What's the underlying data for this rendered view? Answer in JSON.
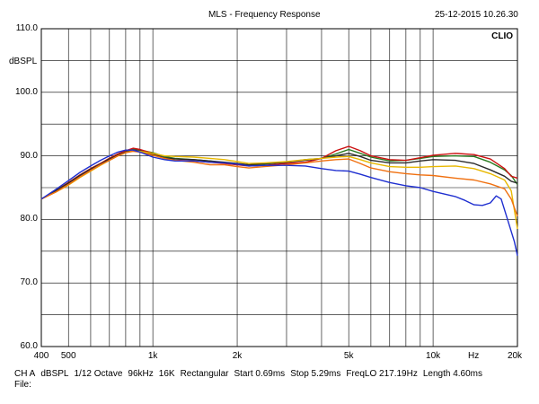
{
  "header": {
    "title": "MLS - Frequency Response",
    "timestamp": "25-12-2015 10.26.30",
    "brand": "CLIO"
  },
  "footer": {
    "settings": [
      "CH A",
      "dBSPL",
      "1/12 Octave",
      "96kHz",
      "16K",
      "Rectangular",
      "Start 0.69ms",
      "Stop 5.29ms",
      "FreqLO 217.19Hz",
      "Length 4.60ms"
    ],
    "file_label": "File:"
  },
  "chart_data": {
    "type": "line",
    "title": "MLS - Frequency Response",
    "ylabel": "dBSPL",
    "xlabel": "Hz",
    "xscale": "log",
    "xlim": [
      400,
      20000
    ],
    "ylim": [
      60,
      110
    ],
    "grid": true,
    "y_ticks": [
      {
        "value": 60,
        "label": "60.0"
      },
      {
        "value": 70,
        "label": "70.0"
      },
      {
        "value": 80,
        "label": "80.0"
      },
      {
        "value": 90,
        "label": "90.0"
      },
      {
        "value": 100,
        "label": "100.0"
      },
      {
        "value": 110,
        "label": "110.0"
      }
    ],
    "x_ticks": [
      {
        "value": 400,
        "label": "400"
      },
      {
        "value": 500,
        "label": "500"
      },
      {
        "value": 1000,
        "label": "1k"
      },
      {
        "value": 2000,
        "label": "2k"
      },
      {
        "value": 5000,
        "label": "5k"
      },
      {
        "value": 10000,
        "label": "10k"
      },
      {
        "value": 20000,
        "label": "20k"
      }
    ],
    "x_grid": [
      400,
      500,
      600,
      700,
      800,
      900,
      1000,
      2000,
      3000,
      4000,
      5000,
      6000,
      7000,
      8000,
      9000,
      10000,
      20000
    ],
    "y_grid": [
      60,
      65,
      70,
      75,
      80,
      85,
      90,
      95,
      100,
      105,
      110
    ],
    "series": [
      {
        "color": "#2a7a20",
        "points": [
          [
            400,
            83.2
          ],
          [
            450,
            84.5
          ],
          [
            500,
            85.8
          ],
          [
            550,
            87.0
          ],
          [
            600,
            88.0
          ],
          [
            650,
            88.8
          ],
          [
            700,
            89.6
          ],
          [
            750,
            90.3
          ],
          [
            800,
            90.8
          ],
          [
            850,
            91.1
          ],
          [
            900,
            90.9
          ],
          [
            1000,
            90.5
          ],
          [
            1100,
            89.9
          ],
          [
            1200,
            89.6
          ],
          [
            1400,
            89.4
          ],
          [
            1600,
            89.2
          ],
          [
            1800,
            88.9
          ],
          [
            2000,
            88.6
          ],
          [
            2200,
            88.5
          ],
          [
            2500,
            88.7
          ],
          [
            3000,
            89.0
          ],
          [
            3500,
            89.4
          ],
          [
            4000,
            89.6
          ],
          [
            4500,
            90.3
          ],
          [
            5000,
            91.0
          ],
          [
            5500,
            90.4
          ],
          [
            6000,
            89.8
          ],
          [
            7000,
            89.2
          ],
          [
            8000,
            89.3
          ],
          [
            9000,
            89.6
          ],
          [
            10000,
            89.9
          ],
          [
            12000,
            90.0
          ],
          [
            14000,
            89.9
          ],
          [
            16000,
            89.0
          ],
          [
            18000,
            87.8
          ],
          [
            19000,
            86.9
          ],
          [
            20000,
            85.5
          ]
        ]
      },
      {
        "color": "#cc1010",
        "points": [
          [
            400,
            83.2
          ],
          [
            450,
            84.5
          ],
          [
            500,
            85.8
          ],
          [
            550,
            87.0
          ],
          [
            600,
            88.0
          ],
          [
            650,
            88.8
          ],
          [
            700,
            89.6
          ],
          [
            750,
            90.3
          ],
          [
            800,
            90.8
          ],
          [
            850,
            91.2
          ],
          [
            900,
            91.0
          ],
          [
            1000,
            90.4
          ],
          [
            1100,
            89.6
          ],
          [
            1200,
            89.3
          ],
          [
            1400,
            89.2
          ],
          [
            1600,
            89.0
          ],
          [
            1800,
            88.8
          ],
          [
            2000,
            88.6
          ],
          [
            2200,
            88.4
          ],
          [
            2500,
            88.5
          ],
          [
            3000,
            88.8
          ],
          [
            3500,
            89.0
          ],
          [
            4000,
            89.6
          ],
          [
            4500,
            90.8
          ],
          [
            5000,
            91.5
          ],
          [
            5500,
            90.8
          ],
          [
            6000,
            90.0
          ],
          [
            7000,
            89.4
          ],
          [
            8000,
            89.3
          ],
          [
            9000,
            89.7
          ],
          [
            10000,
            90.1
          ],
          [
            12000,
            90.4
          ],
          [
            14000,
            90.2
          ],
          [
            16000,
            89.5
          ],
          [
            18000,
            88.0
          ],
          [
            19000,
            86.8
          ],
          [
            20000,
            86.5
          ]
        ]
      },
      {
        "color": "#2b2b2b",
        "points": [
          [
            400,
            83.2
          ],
          [
            450,
            84.5
          ],
          [
            500,
            85.7
          ],
          [
            550,
            86.9
          ],
          [
            600,
            87.9
          ],
          [
            650,
            88.7
          ],
          [
            700,
            89.5
          ],
          [
            750,
            90.1
          ],
          [
            800,
            90.6
          ],
          [
            850,
            90.9
          ],
          [
            900,
            90.8
          ],
          [
            1000,
            90.2
          ],
          [
            1100,
            89.7
          ],
          [
            1200,
            89.5
          ],
          [
            1400,
            89.4
          ],
          [
            1600,
            89.2
          ],
          [
            1800,
            89.0
          ],
          [
            2000,
            88.8
          ],
          [
            2200,
            88.6
          ],
          [
            2500,
            88.8
          ],
          [
            3000,
            89.0
          ],
          [
            3500,
            89.3
          ],
          [
            4000,
            89.6
          ],
          [
            4500,
            90.0
          ],
          [
            5000,
            90.4
          ],
          [
            5500,
            89.9
          ],
          [
            6000,
            89.3
          ],
          [
            7000,
            88.9
          ],
          [
            8000,
            88.9
          ],
          [
            9000,
            89.2
          ],
          [
            10000,
            89.4
          ],
          [
            12000,
            89.3
          ],
          [
            14000,
            88.8
          ],
          [
            16000,
            87.8
          ],
          [
            18000,
            86.8
          ],
          [
            19000,
            86.0
          ],
          [
            20000,
            85.7
          ]
        ]
      },
      {
        "color": "#e8b800",
        "points": [
          [
            400,
            83.2
          ],
          [
            450,
            84.3
          ],
          [
            500,
            85.4
          ],
          [
            550,
            86.6
          ],
          [
            600,
            87.6
          ],
          [
            650,
            88.5
          ],
          [
            700,
            89.3
          ],
          [
            750,
            90.0
          ],
          [
            800,
            90.5
          ],
          [
            850,
            90.8
          ],
          [
            900,
            90.7
          ],
          [
            1000,
            90.4
          ],
          [
            1100,
            90.0
          ],
          [
            1200,
            89.9
          ],
          [
            1400,
            89.8
          ],
          [
            1600,
            89.6
          ],
          [
            1800,
            89.4
          ],
          [
            2000,
            89.1
          ],
          [
            2200,
            88.8
          ],
          [
            2500,
            88.9
          ],
          [
            3000,
            89.1
          ],
          [
            3500,
            89.4
          ],
          [
            4000,
            89.6
          ],
          [
            4500,
            89.8
          ],
          [
            5000,
            89.9
          ],
          [
            5500,
            89.4
          ],
          [
            6000,
            88.9
          ],
          [
            7000,
            88.3
          ],
          [
            8000,
            88.2
          ],
          [
            9000,
            88.2
          ],
          [
            10000,
            88.3
          ],
          [
            12000,
            88.4
          ],
          [
            14000,
            88.0
          ],
          [
            16000,
            87.2
          ],
          [
            18000,
            86.2
          ],
          [
            19000,
            84.5
          ],
          [
            20000,
            78.5
          ]
        ]
      },
      {
        "color": "#f07010",
        "points": [
          [
            400,
            83.2
          ],
          [
            450,
            84.3
          ],
          [
            500,
            85.5
          ],
          [
            550,
            86.7
          ],
          [
            600,
            87.7
          ],
          [
            650,
            88.6
          ],
          [
            700,
            89.3
          ],
          [
            750,
            90.0
          ],
          [
            800,
            90.5
          ],
          [
            850,
            90.7
          ],
          [
            900,
            90.6
          ],
          [
            1000,
            90.1
          ],
          [
            1100,
            89.6
          ],
          [
            1200,
            89.3
          ],
          [
            1400,
            89.0
          ],
          [
            1600,
            88.6
          ],
          [
            1800,
            88.6
          ],
          [
            2000,
            88.3
          ],
          [
            2200,
            88.1
          ],
          [
            2500,
            88.3
          ],
          [
            3000,
            88.6
          ],
          [
            3500,
            88.9
          ],
          [
            4000,
            89.2
          ],
          [
            4500,
            89.4
          ],
          [
            5000,
            89.5
          ],
          [
            5500,
            88.8
          ],
          [
            6000,
            88.1
          ],
          [
            7000,
            87.5
          ],
          [
            8000,
            87.2
          ],
          [
            9000,
            87.0
          ],
          [
            10000,
            86.9
          ],
          [
            12000,
            86.5
          ],
          [
            14000,
            86.2
          ],
          [
            16000,
            85.6
          ],
          [
            18000,
            84.8
          ],
          [
            19000,
            83.2
          ],
          [
            20000,
            80.5
          ]
        ]
      },
      {
        "color": "#1f2fd0",
        "points": [
          [
            400,
            83.2
          ],
          [
            450,
            84.7
          ],
          [
            500,
            86.1
          ],
          [
            550,
            87.4
          ],
          [
            600,
            88.4
          ],
          [
            650,
            89.3
          ],
          [
            700,
            90.0
          ],
          [
            750,
            90.6
          ],
          [
            800,
            90.9
          ],
          [
            850,
            90.9
          ],
          [
            900,
            90.6
          ],
          [
            1000,
            89.8
          ],
          [
            1100,
            89.4
          ],
          [
            1200,
            89.2
          ],
          [
            1400,
            89.2
          ],
          [
            1600,
            89.0
          ],
          [
            1800,
            88.9
          ],
          [
            2000,
            88.7
          ],
          [
            2200,
            88.4
          ],
          [
            2500,
            88.5
          ],
          [
            3000,
            88.5
          ],
          [
            3500,
            88.4
          ],
          [
            4000,
            88.0
          ],
          [
            4500,
            87.7
          ],
          [
            5000,
            87.6
          ],
          [
            5500,
            87.1
          ],
          [
            6000,
            86.6
          ],
          [
            7000,
            85.8
          ],
          [
            8000,
            85.3
          ],
          [
            9000,
            85.0
          ],
          [
            10000,
            84.4
          ],
          [
            12000,
            83.6
          ],
          [
            13000,
            83.0
          ],
          [
            14000,
            82.3
          ],
          [
            15000,
            82.2
          ],
          [
            16000,
            82.6
          ],
          [
            16800,
            83.7
          ],
          [
            17500,
            83.2
          ],
          [
            18500,
            79.8
          ],
          [
            19500,
            76.5
          ],
          [
            20000,
            74.3
          ]
        ]
      }
    ]
  }
}
